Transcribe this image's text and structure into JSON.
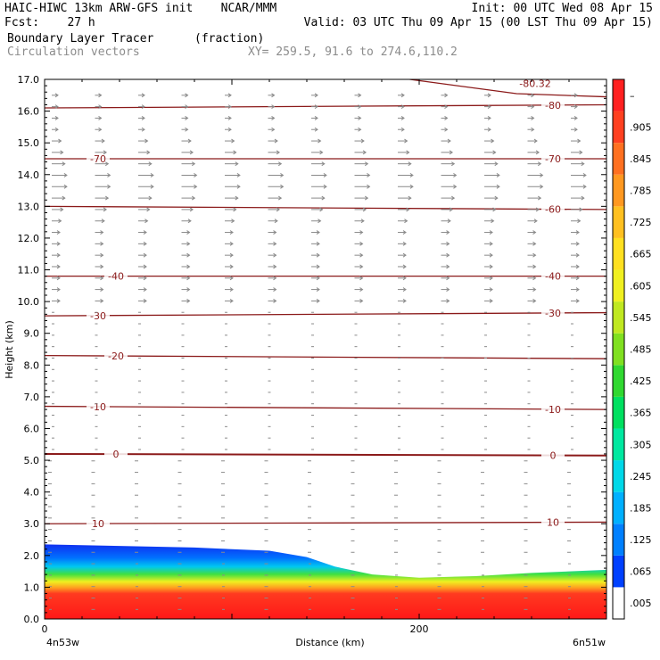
{
  "header": {
    "left_line1": "HAIC-HIWC 13km ARW-GFS init    NCAR/MMM",
    "left_line2": "Fcst:    27 h",
    "right_line1": "Init: 00 UTC Wed 08 Apr 15",
    "right_line2": "Valid: 03 UTC Thu 09 Apr 15 (00 LST Thu 09 Apr 15)",
    "field_name": "Boundary Layer Tracer",
    "field_unit": "(fraction)",
    "vector_name": "Circulation vectors",
    "xy_text": "XY= 259.5, 91.6 to 274.6,110.2"
  },
  "chart_data": {
    "type": "heatmap",
    "xlabel": "Distance (km)",
    "ylabel": "Height (km)",
    "ylim": [
      0,
      17
    ],
    "xlim": [
      0,
      300
    ],
    "y_ticks": [
      "0.0",
      "1.0",
      "2.0",
      "3.0",
      "4.0",
      "5.0",
      "6.0",
      "7.0",
      "8.0",
      "9.0",
      "10.0",
      "11.0",
      "12.0",
      "13.0",
      "14.0",
      "15.0",
      "16.0",
      "17.0"
    ],
    "x_ticks": [
      {
        "value": 0,
        "label": "0"
      },
      {
        "value": 200,
        "label": "200"
      }
    ],
    "x_end_labels": {
      "left": "4n53w",
      "right": "6n51w"
    },
    "colorbar": {
      "labels": [
        ".005",
        ".065",
        ".125",
        ".185",
        ".245",
        ".305",
        ".365",
        ".425",
        ".485",
        ".545",
        ".605",
        ".665",
        ".725",
        ".785",
        ".845",
        ".905",
        "–"
      ],
      "colors": [
        "#ffffff",
        "#0040ff",
        "#0080ff",
        "#00b0ff",
        "#00d8e8",
        "#00e8a0",
        "#00e060",
        "#30d830",
        "#80e020",
        "#c0e820",
        "#f0f020",
        "#ffe020",
        "#ffc020",
        "#ff9820",
        "#ff7020",
        "#ff4020",
        "#ff2020"
      ]
    },
    "boundary_layer_top_km": [
      {
        "x": 0,
        "y": 2.35
      },
      {
        "x": 40,
        "y": 2.3
      },
      {
        "x": 80,
        "y": 2.25
      },
      {
        "x": 120,
        "y": 2.15
      },
      {
        "x": 140,
        "y": 1.95
      },
      {
        "x": 155,
        "y": 1.65
      },
      {
        "x": 175,
        "y": 1.4
      },
      {
        "x": 200,
        "y": 1.3
      },
      {
        "x": 230,
        "y": 1.35
      },
      {
        "x": 260,
        "y": 1.45
      },
      {
        "x": 300,
        "y": 1.55
      }
    ],
    "temperature_contours": [
      {
        "label": "0",
        "y_left": 5.2,
        "y_right": 5.15,
        "label_pos": [
          "left",
          "right"
        ]
      },
      {
        "label": "10",
        "y_left": 3.0,
        "y_right": 3.05,
        "label_pos": [
          "left",
          "right"
        ]
      },
      {
        "label": "-10",
        "y_left": 6.7,
        "y_right": 6.6,
        "label_pos": [
          "left",
          "right"
        ]
      },
      {
        "label": "-20",
        "y_left": 8.3,
        "y_right": 8.2,
        "label_pos": [
          "left"
        ]
      },
      {
        "label": "-30",
        "y_left": 9.55,
        "y_right": 9.65,
        "label_pos": [
          "left",
          "right"
        ]
      },
      {
        "label": "-40",
        "y_left": 10.8,
        "y_right": 10.8,
        "label_pos": [
          "left",
          "right"
        ]
      },
      {
        "label": "-60",
        "y_left": 13.0,
        "y_right": 12.9,
        "label_pos": [
          "right"
        ]
      },
      {
        "label": "-70",
        "y_left": 14.5,
        "y_right": 14.5,
        "label_pos": [
          "left",
          "right"
        ]
      },
      {
        "label": "-80",
        "y_left": 16.1,
        "y_right": 16.2,
        "label_pos": [
          "right"
        ]
      }
    ],
    "top_contour_label": "-80.32"
  }
}
